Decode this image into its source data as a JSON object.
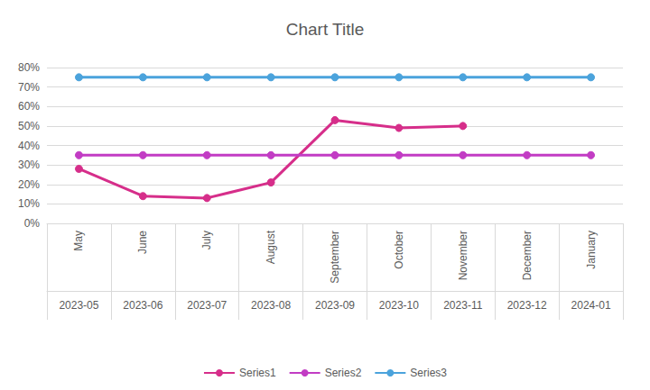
{
  "chart_data": {
    "type": "line",
    "title": "Chart Title",
    "categories": [
      "May",
      "June",
      "July",
      "August",
      "September",
      "October",
      "November",
      "December",
      "January"
    ],
    "category_groups": [
      "2023-05",
      "2023-06",
      "2023-07",
      "2023-08",
      "2023-09",
      "2023-10",
      "2023-11",
      "2023-12",
      "2024-01"
    ],
    "series": [
      {
        "name": "Series1",
        "color": "#d62e8a",
        "marker": "circle",
        "values": [
          28,
          14,
          13,
          21,
          53,
          49,
          50,
          null,
          null
        ]
      },
      {
        "name": "Series2",
        "color": "#c23cc4",
        "marker": "circle",
        "values": [
          35,
          35,
          35,
          35,
          35,
          35,
          35,
          35,
          35
        ]
      },
      {
        "name": "Series3",
        "color": "#4ba3dc",
        "marker": "circle",
        "values": [
          75,
          75,
          75,
          75,
          75,
          75,
          75,
          75,
          75
        ]
      }
    ],
    "ylim": [
      0,
      80
    ],
    "yticks": [
      {
        "value": 0,
        "label": "0%"
      },
      {
        "value": 10,
        "label": "10%"
      },
      {
        "value": 20,
        "label": "20%"
      },
      {
        "value": 30,
        "label": "30%"
      },
      {
        "value": 40,
        "label": "40%"
      },
      {
        "value": 50,
        "label": "50%"
      },
      {
        "value": 60,
        "label": "60%"
      },
      {
        "value": 70,
        "label": "70%"
      },
      {
        "value": 80,
        "label": "80%"
      }
    ],
    "grid": true,
    "legend": "bottom"
  }
}
